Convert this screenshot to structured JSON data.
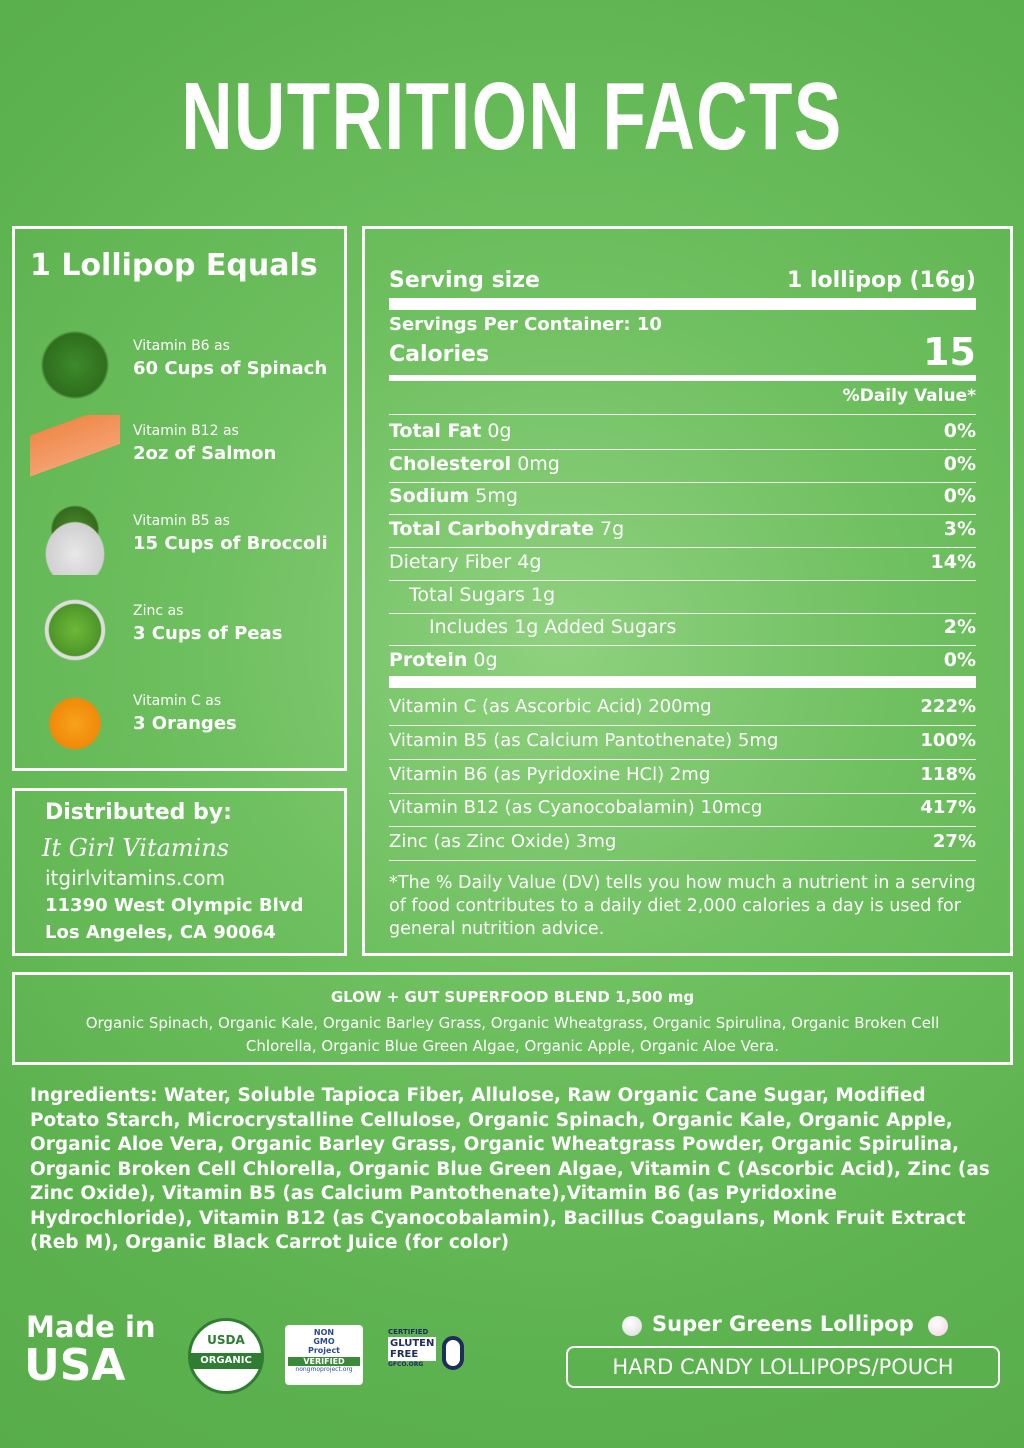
{
  "title": "NUTRITION FACTS",
  "equals": {
    "title": "1 Lollipop Equals",
    "items": [
      {
        "nutrient": "Vitamin B6 as",
        "amount": "60 Cups of Spinach"
      },
      {
        "nutrient": "Vitamin B12 as",
        "amount": "2oz of Salmon"
      },
      {
        "nutrient": "Vitamin B5 as",
        "amount": "15 Cups of Broccoli"
      },
      {
        "nutrient": "Zinc as",
        "amount": "3 Cups of Peas"
      },
      {
        "nutrient": "Vitamin C as",
        "amount": "3 Oranges"
      }
    ]
  },
  "distributor": {
    "label": "Distributed by:",
    "brand": "It Girl Vitamins",
    "website": "itgirlvitamins.com",
    "address_line1": "11390 West Olympic Blvd",
    "address_line2": "Los Angeles, CA 90064"
  },
  "facts": {
    "serving_size_label": "Serving size",
    "serving_size": "1 lollipop (16g)",
    "servings_per_container": "Servings Per Container: 10",
    "calories_label": "Calories",
    "calories": "15",
    "dv_header": "%Daily Value*",
    "rows": [
      {
        "name": "Total Fat",
        "amount": "0g",
        "dv": "0%"
      },
      {
        "name": "Cholesterol",
        "amount": "0mg",
        "dv": "0%"
      },
      {
        "name": "Sodium",
        "amount": "5mg",
        "dv": "0%"
      },
      {
        "name": "Total Carbohydrate",
        "amount": "7g",
        "dv": "3%"
      },
      {
        "name": "Dietary Fiber",
        "amount": "4g",
        "dv": "14%"
      },
      {
        "name": "Total Sugars",
        "amount": "1g"
      },
      {
        "name": "Includes 1g Added Sugars",
        "dv": "2%"
      },
      {
        "name": "Protein",
        "amount": "0g",
        "dv": "0%"
      }
    ],
    "vitamins": [
      {
        "name": "Vitamin C (as Ascorbic Acid) 200mg",
        "dv": "222%"
      },
      {
        "name": "Vitamin B5 (as Calcium Pantothenate) 5mg",
        "dv": "100%"
      },
      {
        "name": "Vitamin B6 (as Pyridoxine HCl) 2mg",
        "dv": "118%"
      },
      {
        "name": "Vitamin B12 (as Cyanocobalamin) 10mcg",
        "dv": "417%"
      },
      {
        "name": "Zinc (as Zinc Oxide) 3mg",
        "dv": "27%"
      }
    ],
    "footnote": "*The % Daily Value (DV) tells you how much a nutrient in a serving of food contributes to a daily diet 2,000 calories a day is used for general nutrition advice."
  },
  "blend": {
    "title": "GLOW + GUT SUPERFOOD BLEND 1,500 mg",
    "text": "Organic Spinach, Organic Kale, Organic Barley Grass, Organic Wheatgrass, Organic Spirulina, Organic Broken Cell Chlorella, Organic Blue Green Algae, Organic Apple, Organic Aloe Vera."
  },
  "ingredients": "Ingredients: Water, Soluble Tapioca Fiber, Allulose, Raw Organic Cane Sugar, Modified Potato Starch, Microcrystalline Cellulose, Organic Spinach, Organic Kale, Organic Apple, Organic Aloe Vera, Organic Barley Grass, Organic Wheatgrass Powder, Organic Spirulina, Organic Broken Cell Chlorella, Organic Blue Green Algae, Vitamin C (Ascorbic Acid), Zinc (as Zinc Oxide), Vitamin B5 (as Calcium Pantothenate),Vitamin B6 (as Pyridoxine Hydrochloride), Vitamin B12 (as Cyanocobalamin), Bacillus Coagulans, Monk Fruit Extract (Reb M), Organic Black Carrot Juice (for color)",
  "made_in": {
    "line1": "Made in",
    "line2": "USA"
  },
  "badges": {
    "usda": {
      "top": "USDA",
      "bottom": "ORGANIC"
    },
    "non_gmo": {
      "line1": "NON",
      "line2": "GMO",
      "line3": "Project",
      "line4": "VERIFIED",
      "url": "nongmoproject.org"
    },
    "gluten_free": {
      "top": "CERTIFIED",
      "line1": "GLUTEN",
      "line2": "FREE",
      "url": "GFCO.ORG"
    }
  },
  "product": {
    "name": "Super Greens Lollipop",
    "type": "HARD CANDY LOLLIPOPS/POUCH"
  }
}
